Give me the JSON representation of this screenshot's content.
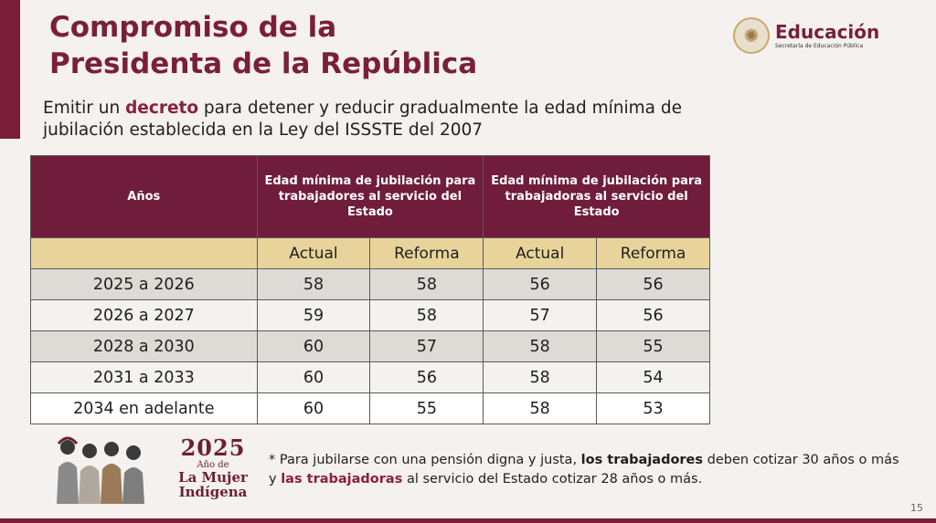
{
  "header": {
    "title_line1": "Compromiso de la",
    "title_line2": "Presidenta de la República",
    "logo_name": "Educación",
    "logo_sub": "Secretaría de Educación Pública",
    "logo_icon": "eagle-seal-icon"
  },
  "subtitle": {
    "before": "Emitir un ",
    "highlight": "decreto",
    "after": " para detener y reducir gradualmente la edad mínima de jubilación establecida en la Ley del ISSSTE del 2007"
  },
  "table": {
    "col_years": "Años",
    "col_group_men": "Edad mínima de jubilación para trabajadores al servicio del Estado",
    "col_group_women": "Edad mínima de jubilación para trabajadoras al servicio del Estado",
    "sub_actual": "Actual",
    "sub_reforma": "Reforma",
    "rows": [
      {
        "years": "2025 a 2026",
        "men_actual": "58",
        "men_reforma": "58",
        "women_actual": "56",
        "women_reforma": "56"
      },
      {
        "years": "2026 a 2027",
        "men_actual": "59",
        "men_reforma": "58",
        "women_actual": "57",
        "women_reforma": "56"
      },
      {
        "years": "2028 a 2030",
        "men_actual": "60",
        "men_reforma": "57",
        "women_actual": "58",
        "women_reforma": "55"
      },
      {
        "years": "2031 a 2033",
        "men_actual": "60",
        "men_reforma": "56",
        "women_actual": "58",
        "women_reforma": "54"
      },
      {
        "years": "2034 en adelante",
        "men_actual": "60",
        "men_reforma": "55",
        "women_actual": "58",
        "women_reforma": "53"
      }
    ]
  },
  "emblem": {
    "year": "2025",
    "line1": "Año de",
    "line2": "La Mujer",
    "line3": "Indígena"
  },
  "footnote": {
    "part1": "* Para jubilarse con una pensión digna y justa, ",
    "bold1": "los trabajadores",
    "part2": " deben cotizar 30 años o más y ",
    "bold2": "las trabajadoras",
    "part3": " al servicio del Estado cotizar 28 años o más."
  },
  "page_number": "15",
  "colors": {
    "brand": "#7a1e3c",
    "header_bg": "#6f1d3a",
    "subheader_bg": "#e8d49a"
  }
}
